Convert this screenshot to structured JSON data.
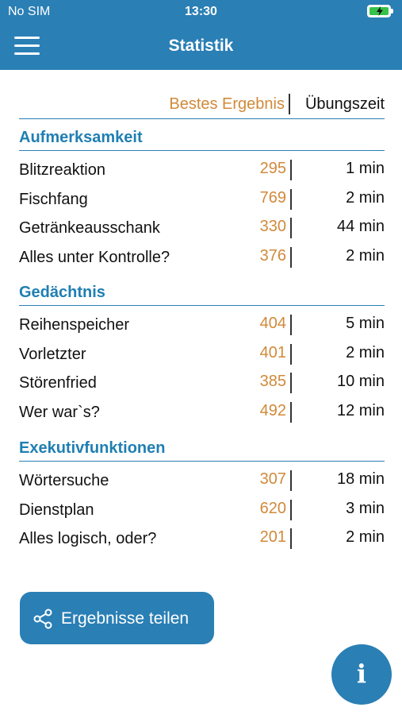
{
  "status": {
    "carrier": "No SIM",
    "time": "13:30"
  },
  "appbar": {
    "title": "Statistik",
    "menu_icon": "hamburger-icon"
  },
  "columns": {
    "best": "Bestes Ergebnis",
    "time": "Übungszeit"
  },
  "sections": [
    {
      "title": "Aufmerksamkeit",
      "rows": [
        {
          "name": "Blitzreaktion",
          "score": "295",
          "time": "1 min"
        },
        {
          "name": "Fischfang",
          "score": "769",
          "time": "2 min"
        },
        {
          "name": "Getränkeausschank",
          "score": "330",
          "time": "44 min"
        },
        {
          "name": "Alles unter Kontrolle?",
          "score": "376",
          "time": "2 min"
        }
      ]
    },
    {
      "title": "Gedächtnis",
      "rows": [
        {
          "name": "Reihenspeicher",
          "score": "404",
          "time": "5 min"
        },
        {
          "name": "Vorletzter",
          "score": "401",
          "time": "2 min"
        },
        {
          "name": "Störenfried",
          "score": "385",
          "time": "10 min"
        },
        {
          "name": "Wer war`s?",
          "score": "492",
          "time": "12 min"
        }
      ]
    },
    {
      "title": "Exekutivfunktionen",
      "rows": [
        {
          "name": "Wörtersuche",
          "score": "307",
          "time": "18 min"
        },
        {
          "name": "Dienstplan",
          "score": "620",
          "time": "3 min"
        },
        {
          "name": "Alles logisch, oder?",
          "score": "201",
          "time": "2 min"
        }
      ]
    }
  ],
  "share": {
    "label": "Ergebnisse teilen",
    "icon": "share-icon"
  },
  "info": {
    "glyph": "i",
    "icon": "info-icon"
  },
  "colors": {
    "primary": "#2a7fb5",
    "score": "#d08a3a",
    "battery": "#35c24a"
  }
}
